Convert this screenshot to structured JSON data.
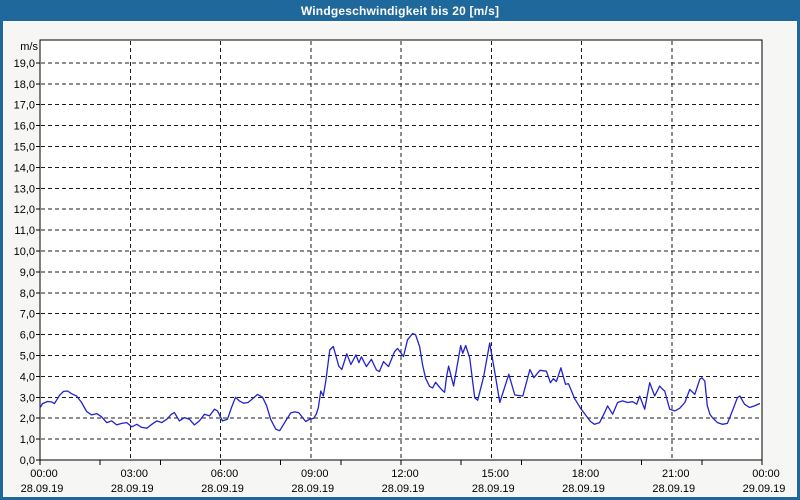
{
  "window": {
    "title": "Windgeschwindigkeit bis 20 [m/s]"
  },
  "colors": {
    "titlebar": "#1f689c",
    "frame": "#1f689c",
    "content_bg": "#f6f7f4",
    "plot_bg": "#ffffff",
    "grid": "#1c1c1c",
    "axis": "#000000",
    "label_text": "#000000",
    "title_text": "#ffffff",
    "line": "#2323cb"
  },
  "chart_data": {
    "type": "line",
    "title": "Windgeschwindigkeit bis 20 [m/s]",
    "grid": "dashed",
    "legend_position": "none",
    "y_axis": {
      "unit": "m/s",
      "min": 0,
      "max": 20.1,
      "tick_step": 1,
      "tick_labels": [
        "0,0",
        "1,0",
        "2,0",
        "3,0",
        "4,0",
        "5,0",
        "6,0",
        "7,0",
        "8,0",
        "9,0",
        "10,0",
        "11,0",
        "12,0",
        "13,0",
        "14,0",
        "15,0",
        "16,0",
        "17,0",
        "18,0",
        "19,0"
      ]
    },
    "x_axis": {
      "span_hours": 24,
      "minor_step_hours": 2,
      "grid_hours": [
        3,
        6,
        9,
        12,
        15,
        18,
        21
      ],
      "ticks": [
        {
          "hour": 0,
          "time": "00:00",
          "date": "28.09.19"
        },
        {
          "hour": 3,
          "time": "03:00",
          "date": "28.09.19"
        },
        {
          "hour": 6,
          "time": "06:00",
          "date": "28.09.19"
        },
        {
          "hour": 9,
          "time": "09:00",
          "date": "28.09.19"
        },
        {
          "hour": 12,
          "time": "12:00",
          "date": "28.09.19"
        },
        {
          "hour": 15,
          "time": "15:00",
          "date": "28.09.19"
        },
        {
          "hour": 18,
          "time": "18:00",
          "date": "28.09.19"
        },
        {
          "hour": 21,
          "time": "21:00",
          "date": "28.09.19"
        },
        {
          "hour": 24,
          "time": "00:00",
          "date": "29.09.19"
        }
      ]
    },
    "series": [
      {
        "name": "Windgeschwindigkeit",
        "color": "#2323cb",
        "points": [
          [
            0,
            2.5
          ],
          [
            5,
            2.7
          ],
          [
            15,
            2.8
          ],
          [
            23,
            2.78
          ],
          [
            29,
            2.7
          ],
          [
            39,
            3.1
          ],
          [
            47,
            3.28
          ],
          [
            55,
            3.3
          ],
          [
            63,
            3.17
          ],
          [
            73,
            3.06
          ],
          [
            83,
            2.75
          ],
          [
            93,
            2.32
          ],
          [
            103,
            2.16
          ],
          [
            113,
            2.22
          ],
          [
            123,
            2.06
          ],
          [
            133,
            1.79
          ],
          [
            143,
            1.87
          ],
          [
            153,
            1.68
          ],
          [
            163,
            1.75
          ],
          [
            173,
            1.79
          ],
          [
            183,
            1.59
          ],
          [
            193,
            1.71
          ],
          [
            203,
            1.56
          ],
          [
            213,
            1.52
          ],
          [
            223,
            1.71
          ],
          [
            233,
            1.87
          ],
          [
            243,
            1.79
          ],
          [
            253,
            1.95
          ],
          [
            262,
            2.19
          ],
          [
            268,
            2.27
          ],
          [
            278,
            1.87
          ],
          [
            288,
            2.03
          ],
          [
            298,
            1.95
          ],
          [
            308,
            1.68
          ],
          [
            318,
            1.87
          ],
          [
            328,
            2.19
          ],
          [
            338,
            2.11
          ],
          [
            348,
            2.43
          ],
          [
            354,
            2.35
          ],
          [
            364,
            1.87
          ],
          [
            374,
            1.95
          ],
          [
            382,
            2.51
          ],
          [
            390,
            3.0
          ],
          [
            398,
            2.82
          ],
          [
            406,
            2.72
          ],
          [
            415,
            2.75
          ],
          [
            425,
            2.95
          ],
          [
            434,
            3.14
          ],
          [
            444,
            3.0
          ],
          [
            452,
            2.6
          ],
          [
            460,
            1.95
          ],
          [
            470,
            1.48
          ],
          [
            478,
            1.4
          ],
          [
            490,
            1.87
          ],
          [
            500,
            2.25
          ],
          [
            508,
            2.3
          ],
          [
            516,
            2.27
          ],
          [
            530,
            1.84
          ],
          [
            538,
            1.95
          ],
          [
            546,
            2.0
          ],
          [
            551,
            2.2
          ],
          [
            555,
            2.5
          ],
          [
            560,
            3.3
          ],
          [
            565,
            3.06
          ],
          [
            570,
            3.78
          ],
          [
            578,
            5.27
          ],
          [
            585,
            5.43
          ],
          [
            596,
            4.49
          ],
          [
            602,
            4.33
          ],
          [
            612,
            5.08
          ],
          [
            620,
            4.57
          ],
          [
            630,
            5.03
          ],
          [
            636,
            4.66
          ],
          [
            641,
            4.94
          ],
          [
            651,
            4.47
          ],
          [
            661,
            4.82
          ],
          [
            671,
            4.31
          ],
          [
            677,
            4.23
          ],
          [
            685,
            4.71
          ],
          [
            695,
            4.47
          ],
          [
            707,
            5.18
          ],
          [
            713,
            5.34
          ],
          [
            725,
            4.95
          ],
          [
            733,
            5.75
          ],
          [
            743,
            6.05
          ],
          [
            749,
            6.0
          ],
          [
            757,
            5.43
          ],
          [
            763,
            4.55
          ],
          [
            769,
            3.91
          ],
          [
            777,
            3.52
          ],
          [
            783,
            3.45
          ],
          [
            789,
            3.72
          ],
          [
            797,
            3.48
          ],
          [
            803,
            3.32
          ],
          [
            807,
            3.24
          ],
          [
            811,
            4.0
          ],
          [
            815,
            4.49
          ],
          [
            825,
            3.54
          ],
          [
            839,
            5.48
          ],
          [
            843,
            5.1
          ],
          [
            849,
            5.48
          ],
          [
            857,
            4.89
          ],
          [
            867,
            2.98
          ],
          [
            873,
            2.86
          ],
          [
            885,
            4.0
          ],
          [
            897,
            5.6
          ],
          [
            907,
            4.2
          ],
          [
            917,
            2.75
          ],
          [
            935,
            4.1
          ],
          [
            947,
            3.11
          ],
          [
            963,
            3.06
          ],
          [
            977,
            4.33
          ],
          [
            985,
            3.94
          ],
          [
            997,
            4.29
          ],
          [
            1010,
            4.25
          ],
          [
            1018,
            3.7
          ],
          [
            1024,
            3.89
          ],
          [
            1030,
            3.75
          ],
          [
            1039,
            4.41
          ],
          [
            1048,
            3.62
          ],
          [
            1054,
            3.65
          ],
          [
            1066,
            2.95
          ],
          [
            1078,
            2.48
          ],
          [
            1088,
            2.16
          ],
          [
            1098,
            1.84
          ],
          [
            1106,
            1.71
          ],
          [
            1116,
            1.79
          ],
          [
            1126,
            2.27
          ],
          [
            1132,
            2.59
          ],
          [
            1142,
            2.19
          ],
          [
            1152,
            2.75
          ],
          [
            1162,
            2.83
          ],
          [
            1172,
            2.75
          ],
          [
            1182,
            2.79
          ],
          [
            1190,
            2.67
          ],
          [
            1196,
            3.06
          ],
          [
            1206,
            2.43
          ],
          [
            1216,
            3.7
          ],
          [
            1226,
            3.06
          ],
          [
            1236,
            3.54
          ],
          [
            1242,
            3.38
          ],
          [
            1246,
            3.3
          ],
          [
            1256,
            2.43
          ],
          [
            1266,
            2.35
          ],
          [
            1276,
            2.48
          ],
          [
            1286,
            2.75
          ],
          [
            1296,
            3.38
          ],
          [
            1306,
            3.14
          ],
          [
            1316,
            3.86
          ],
          [
            1320,
            3.94
          ],
          [
            1326,
            3.78
          ],
          [
            1331,
            2.6
          ],
          [
            1336,
            2.19
          ],
          [
            1341,
            2.03
          ],
          [
            1351,
            1.79
          ],
          [
            1361,
            1.71
          ],
          [
            1371,
            1.75
          ],
          [
            1381,
            2.35
          ],
          [
            1391,
            2.98
          ],
          [
            1396,
            3.06
          ],
          [
            1405,
            2.67
          ],
          [
            1415,
            2.51
          ],
          [
            1425,
            2.59
          ],
          [
            1435,
            2.7
          ]
        ]
      }
    ]
  }
}
